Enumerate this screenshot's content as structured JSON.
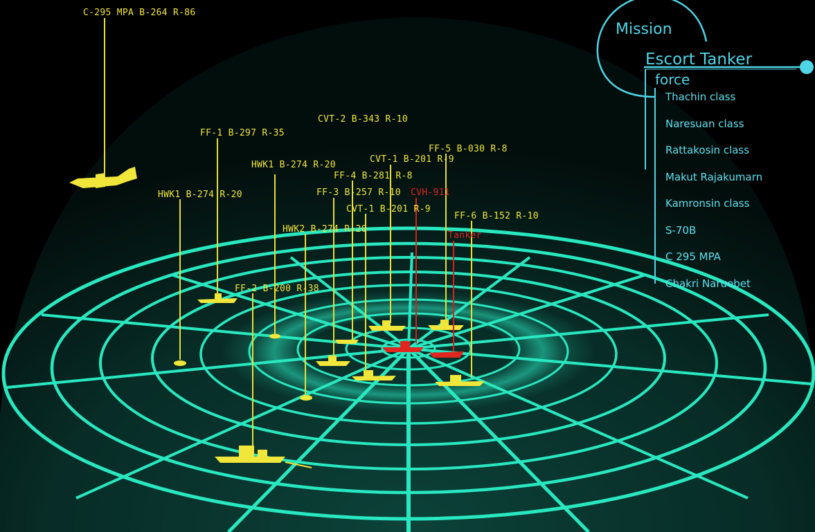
{
  "colors": {
    "grid": "#29e8c0",
    "friendly": "#f1e63a",
    "target": "#e0261f",
    "panel": "#4fd6e6"
  },
  "mission": {
    "title": "Mission",
    "name": "Escort Tanker",
    "force_label": "force",
    "force_list": [
      "Thachin class",
      "Naresuan class",
      "Rattakosin class",
      "Makut Rajakumarn",
      "Kamronsin class",
      "S-70B",
      "C 295 MPA",
      "Chakri Naruebet"
    ]
  },
  "tracks": [
    {
      "id": "c295",
      "label": "C-295 MPA B-264 R-86",
      "color": "friendly",
      "icon": "aircraft-icon"
    },
    {
      "id": "ff1",
      "label": "FF-1 B-297 R-35",
      "color": "friendly",
      "icon": "ship-icon"
    },
    {
      "id": "cvt2",
      "label": "CVT-2 B-343 R-10",
      "color": "friendly",
      "icon": "ship-icon"
    },
    {
      "id": "ff5",
      "label": "FF-5 B-030 R-8",
      "color": "friendly",
      "icon": "ship-icon"
    },
    {
      "id": "cvt1a",
      "label": "CVT-1 B-201 R-9",
      "color": "friendly",
      "icon": "ship-icon"
    },
    {
      "id": "hwk1a",
      "label": "HWK1 B-274 R-20",
      "color": "friendly",
      "icon": "helicopter-icon"
    },
    {
      "id": "ff4",
      "label": "FF-4 B-281 R-8",
      "color": "friendly",
      "icon": "ship-icon"
    },
    {
      "id": "hwk1b",
      "label": "HWK1 B-274 R-20",
      "color": "friendly",
      "icon": "helicopter-icon"
    },
    {
      "id": "ff3",
      "label": "FF-3 B-257 R-10",
      "color": "friendly",
      "icon": "ship-icon"
    },
    {
      "id": "cvh911",
      "label": "CVH-911",
      "color": "target",
      "icon": "carrier-icon"
    },
    {
      "id": "cvt1b",
      "label": "CVT-1 B-201 R-9",
      "color": "friendly",
      "icon": "ship-icon"
    },
    {
      "id": "ff6",
      "label": "FF-6 B-152 R-10",
      "color": "friendly",
      "icon": "ship-icon"
    },
    {
      "id": "hwk2",
      "label": "HWK2 B-274 R-20",
      "color": "friendly",
      "icon": "helicopter-icon"
    },
    {
      "id": "tanker",
      "label": "Tanker",
      "color": "target",
      "icon": "tanker-icon"
    },
    {
      "id": "ff2",
      "label": "FF-2 B-200 R-38",
      "color": "friendly",
      "icon": "ship-icon"
    }
  ]
}
